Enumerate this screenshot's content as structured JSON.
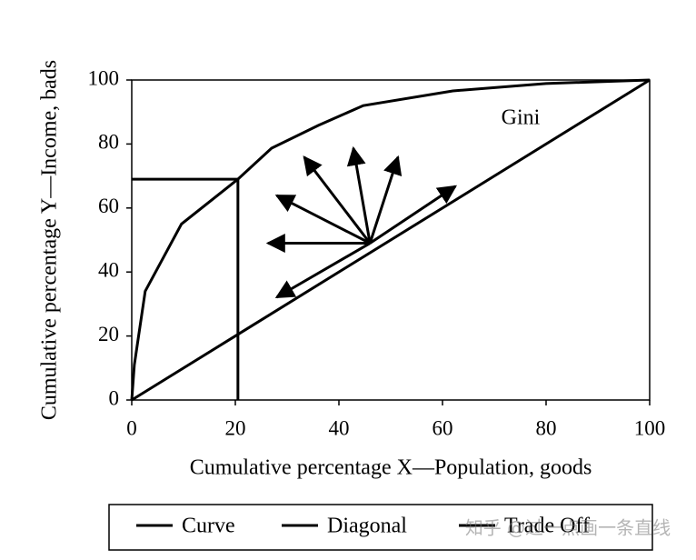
{
  "chart_data": {
    "type": "line",
    "xlabel": "Cumulative percentage X—Population, goods",
    "ylabel": "Cumulative percentage Y—Income, bads",
    "annotation": "Gini",
    "xlim": [
      0,
      100
    ],
    "ylim": [
      0,
      100
    ],
    "xticks": [
      0,
      20,
      40,
      60,
      80,
      100
    ],
    "yticks": [
      0,
      20,
      40,
      60,
      80,
      100
    ],
    "series": [
      {
        "name": "Curve",
        "color": "#000000",
        "x": [
          0,
          0.5,
          2.6,
          9.6,
          20.5,
          27,
          36,
          44.7,
          62,
          80,
          100
        ],
        "values": [
          0,
          11,
          34,
          55,
          69,
          78.7,
          85.8,
          92,
          96.6,
          98.9,
          100
        ]
      },
      {
        "name": "Diagonal",
        "color": "#000000",
        "x": [
          0,
          100
        ],
        "values": [
          0,
          100
        ]
      },
      {
        "name": "Trade Off",
        "color": "#000000",
        "x": [
          0,
          20.5,
          20.5
        ],
        "values": [
          69,
          69,
          0
        ]
      }
    ],
    "arrows": [
      {
        "x": [
          46,
          26.3
        ],
        "y": [
          49,
          49
        ]
      },
      {
        "x": [
          46,
          28
        ],
        "y": [
          49,
          63.9
        ]
      },
      {
        "x": [
          46,
          33.3
        ],
        "y": [
          49,
          75.9
        ]
      },
      {
        "x": [
          46,
          42.8
        ],
        "y": [
          49,
          78.7
        ]
      },
      {
        "x": [
          46,
          51.4
        ],
        "y": [
          49,
          75.9
        ]
      },
      {
        "x": [
          46,
          62.5
        ],
        "y": [
          49,
          66.8
        ]
      },
      {
        "x": [
          46,
          28
        ],
        "y": [
          49,
          32.1
        ]
      }
    ],
    "watermark": "知乎 @过一点画一条直线"
  }
}
